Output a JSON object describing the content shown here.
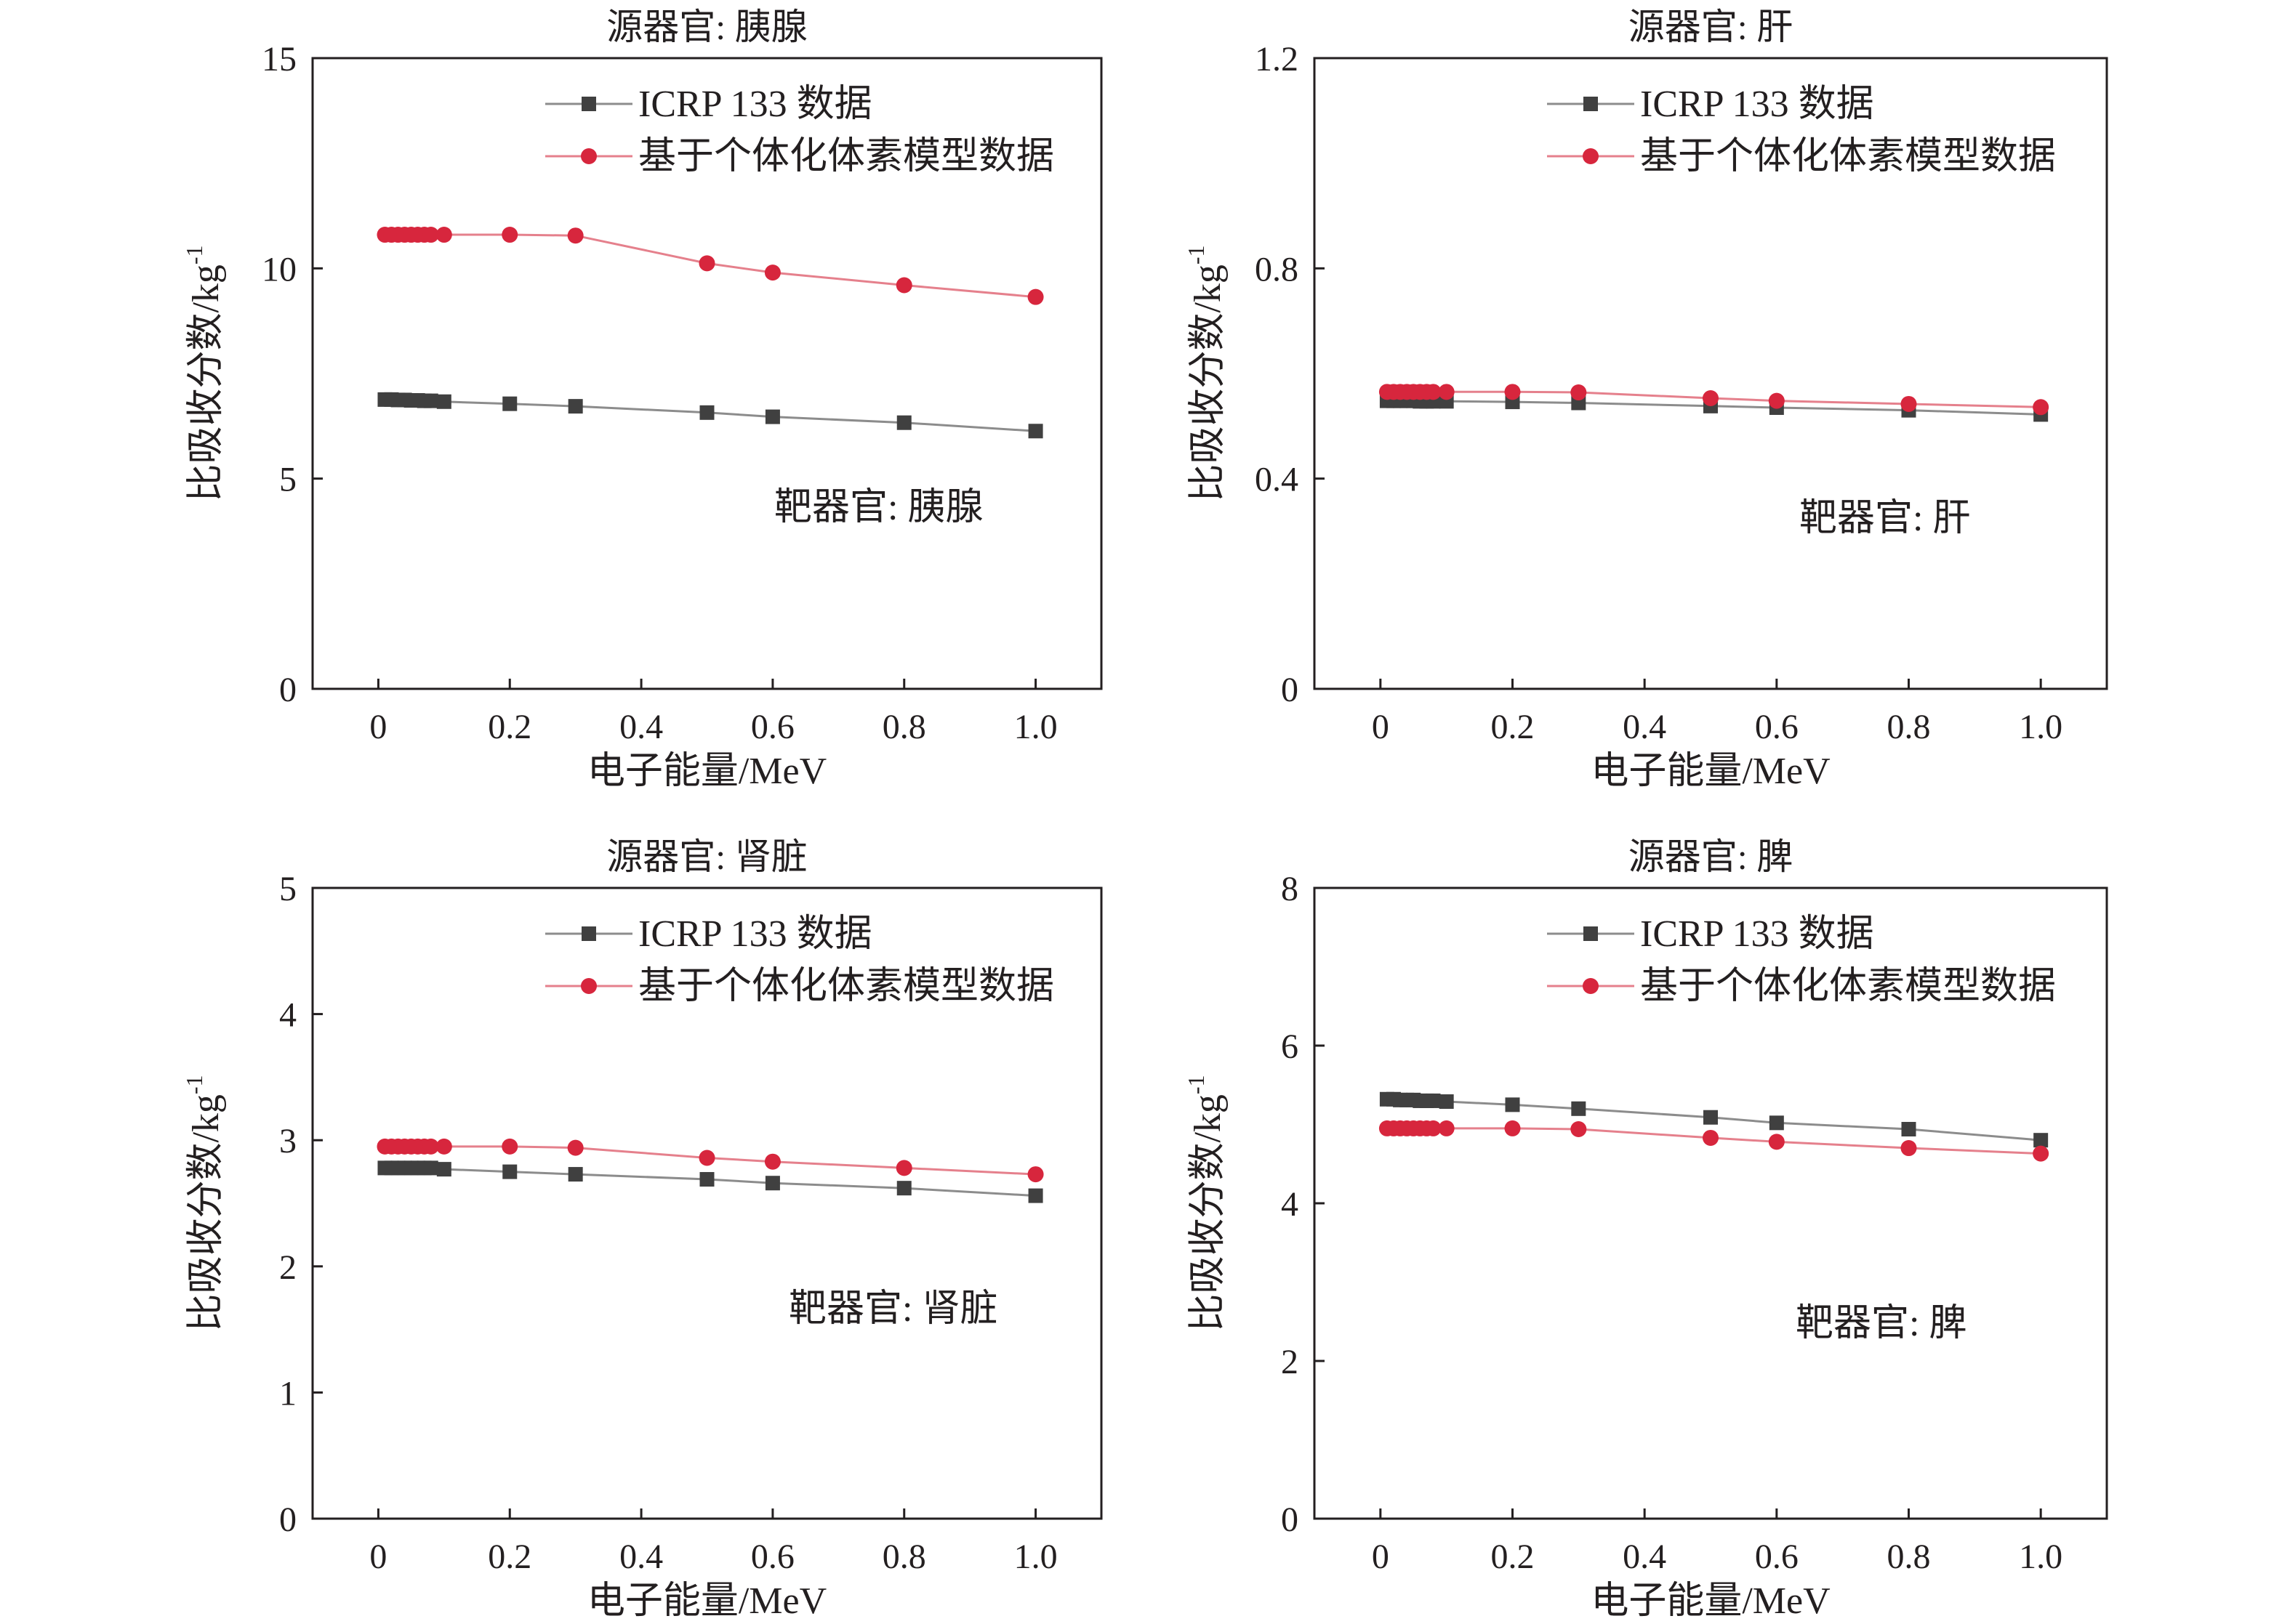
{
  "figure": {
    "sup": "-1"
  },
  "chart_data": [
    {
      "type": "line",
      "title": "源器官: 胰腺",
      "xlabel": "电子能量/MeV",
      "ylabel": "比吸收分数/kg",
      "annotation": "靶器官: 胰腺",
      "xlim": [
        -0.1,
        1.1
      ],
      "ylim": [
        0,
        15
      ],
      "xticks": [
        "0",
        "0.2",
        "0.4",
        "0.6",
        "0.8",
        "1.0"
      ],
      "yticks": [
        "0",
        "5",
        "10",
        "15"
      ],
      "legend_position": "top-right",
      "x": [
        0.01,
        0.02,
        0.03,
        0.04,
        0.05,
        0.06,
        0.07,
        0.08,
        0.1,
        0.2,
        0.3,
        0.5,
        0.6,
        0.8,
        1.0
      ],
      "series": [
        {
          "name": "ICRP 133 数据",
          "marker": "square",
          "color": "#404040",
          "line_color": "#8c8c8c",
          "values": [
            6.88,
            6.88,
            6.87,
            6.87,
            6.86,
            6.86,
            6.85,
            6.85,
            6.83,
            6.78,
            6.72,
            6.57,
            6.47,
            6.33,
            6.13
          ]
        },
        {
          "name": "基于个体化体素模型数据",
          "marker": "circle",
          "color": "#d7263d",
          "line_color": "#e5808c",
          "values": [
            10.8,
            10.8,
            10.8,
            10.8,
            10.8,
            10.8,
            10.8,
            10.8,
            10.8,
            10.8,
            10.78,
            10.12,
            9.9,
            9.6,
            9.32
          ]
        }
      ]
    },
    {
      "type": "line",
      "title": "源器官: 肝",
      "xlabel": "电子能量/MeV",
      "ylabel": "比吸收分数/kg",
      "annotation": "靶器官: 肝",
      "xlim": [
        -0.1,
        1.1
      ],
      "ylim": [
        0,
        1.2
      ],
      "xticks": [
        "0",
        "0.2",
        "0.4",
        "0.6",
        "0.8",
        "1.0"
      ],
      "yticks": [
        "0",
        "0.4",
        "0.8",
        "1.2"
      ],
      "legend_position": "top-right",
      "x": [
        0.01,
        0.02,
        0.03,
        0.04,
        0.05,
        0.06,
        0.07,
        0.08,
        0.1,
        0.2,
        0.3,
        0.5,
        0.6,
        0.8,
        1.0
      ],
      "series": [
        {
          "name": "ICRP 133 数据",
          "marker": "square",
          "color": "#404040",
          "line_color": "#8c8c8c",
          "values": [
            0.548,
            0.548,
            0.548,
            0.548,
            0.548,
            0.547,
            0.547,
            0.547,
            0.547,
            0.546,
            0.544,
            0.538,
            0.535,
            0.53,
            0.522
          ]
        },
        {
          "name": "基于个体化体素模型数据",
          "marker": "circle",
          "color": "#d7263d",
          "line_color": "#e5808c",
          "values": [
            0.565,
            0.565,
            0.565,
            0.565,
            0.565,
            0.565,
            0.565,
            0.565,
            0.565,
            0.565,
            0.564,
            0.553,
            0.548,
            0.542,
            0.536
          ]
        }
      ]
    },
    {
      "type": "line",
      "title": "源器官: 肾脏",
      "xlabel": "电子能量/MeV",
      "ylabel": "比吸收分数/kg",
      "annotation": "靶器官: 肾脏",
      "xlim": [
        -0.1,
        1.1
      ],
      "ylim": [
        0,
        5
      ],
      "xticks": [
        "0",
        "0.2",
        "0.4",
        "0.6",
        "0.8",
        "1.0"
      ],
      "yticks": [
        "0",
        "1",
        "2",
        "3",
        "4",
        "5"
      ],
      "legend_position": "top-right",
      "x": [
        0.01,
        0.02,
        0.03,
        0.04,
        0.05,
        0.06,
        0.07,
        0.08,
        0.1,
        0.2,
        0.3,
        0.5,
        0.6,
        0.8,
        1.0
      ],
      "series": [
        {
          "name": "ICRP 133 数据",
          "marker": "square",
          "color": "#404040",
          "line_color": "#8c8c8c",
          "values": [
            2.78,
            2.78,
            2.78,
            2.78,
            2.78,
            2.78,
            2.78,
            2.78,
            2.77,
            2.75,
            2.73,
            2.69,
            2.66,
            2.62,
            2.56
          ]
        },
        {
          "name": "基于个体化体素模型数据",
          "marker": "circle",
          "color": "#d7263d",
          "line_color": "#e5808c",
          "values": [
            2.95,
            2.95,
            2.95,
            2.95,
            2.95,
            2.95,
            2.95,
            2.95,
            2.95,
            2.95,
            2.94,
            2.86,
            2.83,
            2.78,
            2.73
          ]
        }
      ]
    },
    {
      "type": "line",
      "title": "源器官: 脾",
      "xlabel": "电子能量/MeV",
      "ylabel": "比吸收分数/kg",
      "annotation": "靶器官: 脾",
      "xlim": [
        -0.1,
        1.1
      ],
      "ylim": [
        0,
        8
      ],
      "xticks": [
        "0",
        "0.2",
        "0.4",
        "0.6",
        "0.8",
        "1.0"
      ],
      "yticks": [
        "0",
        "2",
        "4",
        "6",
        "8"
      ],
      "legend_position": "top-right",
      "x": [
        0.01,
        0.02,
        0.03,
        0.04,
        0.05,
        0.06,
        0.07,
        0.08,
        0.1,
        0.2,
        0.3,
        0.5,
        0.6,
        0.8,
        1.0
      ],
      "series": [
        {
          "name": "ICRP 133 数据",
          "marker": "square",
          "color": "#404040",
          "line_color": "#8c8c8c",
          "values": [
            5.32,
            5.32,
            5.31,
            5.31,
            5.31,
            5.3,
            5.3,
            5.3,
            5.29,
            5.25,
            5.2,
            5.09,
            5.02,
            4.94,
            4.8
          ]
        },
        {
          "name": "基于个体化体素模型数据",
          "marker": "circle",
          "color": "#d7263d",
          "line_color": "#e5808c",
          "values": [
            4.95,
            4.95,
            4.95,
            4.95,
            4.95,
            4.95,
            4.95,
            4.95,
            4.95,
            4.95,
            4.94,
            4.83,
            4.78,
            4.7,
            4.63
          ]
        }
      ]
    }
  ]
}
